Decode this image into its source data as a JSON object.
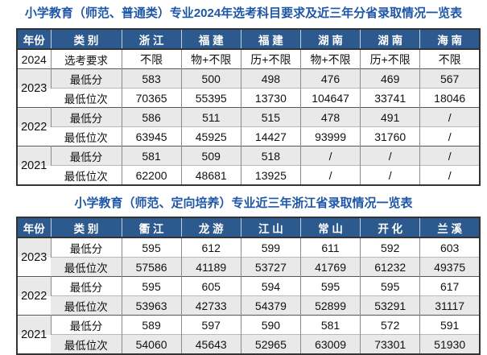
{
  "colors": {
    "header_bg": "#2d5a8e",
    "header_text": "#ffffff",
    "title_text": "#1f57a6",
    "band_gray": "#e9e9e9",
    "border_dark": "#333333"
  },
  "t1": {
    "title": "小学教育（师范、普通类）专业2024年选考科目要求及近三年分省录取情况一览表",
    "headers": [
      "年份",
      "类 别",
      "浙 江",
      "福 建",
      "福 建",
      "湖 南",
      "湖 南",
      "海 南"
    ],
    "rows": [
      {
        "year": "2024",
        "label": "选考要求",
        "values": [
          "不限",
          "物+不限",
          "历+不限",
          "物+不限",
          "历+不限",
          "不限"
        ]
      },
      {
        "year": "2023",
        "label": "最低分",
        "values": [
          "583",
          "500",
          "498",
          "476",
          "469",
          "567"
        ]
      },
      {
        "label": "最低位次",
        "values": [
          "70365",
          "55395",
          "13730",
          "104647",
          "33741",
          "18046"
        ]
      },
      {
        "year": "2022",
        "label": "最低分",
        "values": [
          "586",
          "511",
          "515",
          "478",
          "491",
          "/"
        ]
      },
      {
        "label": "最低位次",
        "values": [
          "63945",
          "45925",
          "14427",
          "93999",
          "31760",
          "/"
        ]
      },
      {
        "year": "2021",
        "label": "最低分",
        "values": [
          "581",
          "509",
          "518",
          "/",
          "/",
          "/"
        ]
      },
      {
        "label": "最低位次",
        "values": [
          "62200",
          "48681",
          "13925",
          "/",
          "/",
          "/"
        ]
      }
    ]
  },
  "t2": {
    "title": "小学教育（师范、定向培养）专业近三年浙江省录取情况一览表",
    "headers": [
      "年份",
      "类 别",
      "衢 江",
      "龙 游",
      "江 山",
      "常 山",
      "开 化",
      "兰 溪"
    ],
    "rows": [
      {
        "year": "2023",
        "label": "最低分",
        "values": [
          "595",
          "612",
          "599",
          "611",
          "592",
          "603"
        ]
      },
      {
        "label": "最低位次",
        "values": [
          "57586",
          "41189",
          "53727",
          "41769",
          "61232",
          "49375"
        ]
      },
      {
        "year": "2022",
        "label": "最低分",
        "values": [
          "595",
          "605",
          "594",
          "595",
          "595",
          "617"
        ]
      },
      {
        "label": "最低位次",
        "values": [
          "53963",
          "42733",
          "54379",
          "52899",
          "53291",
          "31117"
        ]
      },
      {
        "year": "2021",
        "label": "最低分",
        "values": [
          "589",
          "597",
          "590",
          "581",
          "572",
          "591"
        ]
      },
      {
        "label": "最低位次",
        "values": [
          "54060",
          "45643",
          "52965",
          "63009",
          "73301",
          "51930"
        ]
      }
    ]
  }
}
